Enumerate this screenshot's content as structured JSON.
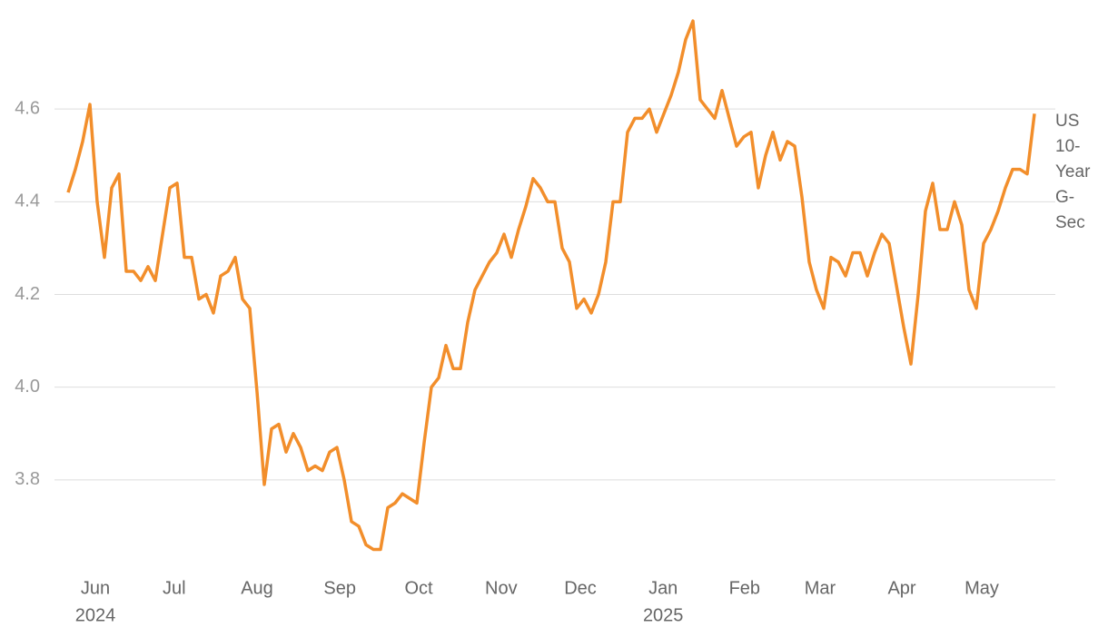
{
  "chart_data": {
    "type": "line",
    "series": [
      {
        "name": "US 10-Year G-Sec",
        "color": "#f28e2b",
        "values": [
          4.42,
          4.47,
          4.53,
          4.61,
          4.4,
          4.28,
          4.43,
          4.46,
          4.25,
          4.25,
          4.23,
          4.26,
          4.23,
          4.33,
          4.43,
          4.44,
          4.28,
          4.28,
          4.19,
          4.2,
          4.16,
          4.24,
          4.25,
          4.28,
          4.19,
          4.17,
          3.99,
          3.79,
          3.91,
          3.92,
          3.86,
          3.9,
          3.87,
          3.82,
          3.83,
          3.82,
          3.86,
          3.87,
          3.8,
          3.71,
          3.7,
          3.66,
          3.65,
          3.65,
          3.74,
          3.75,
          3.77,
          3.76,
          3.75,
          3.88,
          4.0,
          4.02,
          4.09,
          4.04,
          4.04,
          4.14,
          4.21,
          4.24,
          4.27,
          4.29,
          4.33,
          4.28,
          4.34,
          4.39,
          4.45,
          4.43,
          4.4,
          4.4,
          4.3,
          4.27,
          4.17,
          4.19,
          4.16,
          4.2,
          4.27,
          4.4,
          4.4,
          4.55,
          4.58,
          4.58,
          4.6,
          4.55,
          4.59,
          4.63,
          4.68,
          4.75,
          4.79,
          4.62,
          4.6,
          4.58,
          4.64,
          4.58,
          4.52,
          4.54,
          4.55,
          4.43,
          4.5,
          4.55,
          4.49,
          4.53,
          4.52,
          4.41,
          4.27,
          4.21,
          4.17,
          4.28,
          4.27,
          4.24,
          4.29,
          4.29,
          4.24,
          4.29,
          4.33,
          4.31,
          4.22,
          4.13,
          4.05,
          4.2,
          4.38,
          4.44,
          4.34,
          4.34,
          4.4,
          4.35,
          4.21,
          4.17,
          4.31,
          4.34,
          4.38,
          4.43,
          4.47,
          4.47,
          4.46,
          4.59
        ]
      }
    ],
    "ylim": [
      3.6,
      4.8
    ],
    "yticks": [
      {
        "value": 3.8,
        "label": "3.8"
      },
      {
        "value": 4.0,
        "label": "4.0"
      },
      {
        "value": 4.2,
        "label": "4.2"
      },
      {
        "value": 4.4,
        "label": "4.4"
      },
      {
        "value": 4.6,
        "label": "4.6"
      }
    ],
    "xlim": [
      0,
      133
    ],
    "xticks": [
      {
        "value": 3.75,
        "label": "Jun",
        "year": "2024"
      },
      {
        "value": 14.6,
        "label": "Jul"
      },
      {
        "value": 26,
        "label": "Aug"
      },
      {
        "value": 37.4,
        "label": "Sep"
      },
      {
        "value": 48.25,
        "label": "Oct"
      },
      {
        "value": 59.6,
        "label": "Nov"
      },
      {
        "value": 70.5,
        "label": "Dec"
      },
      {
        "value": 81.9,
        "label": "Jan",
        "year": "2025"
      },
      {
        "value": 93.1,
        "label": "Feb"
      },
      {
        "value": 103.5,
        "label": "Mar"
      },
      {
        "value": 114.75,
        "label": "Apr"
      },
      {
        "value": 125.75,
        "label": "May"
      }
    ],
    "grid": true
  }
}
